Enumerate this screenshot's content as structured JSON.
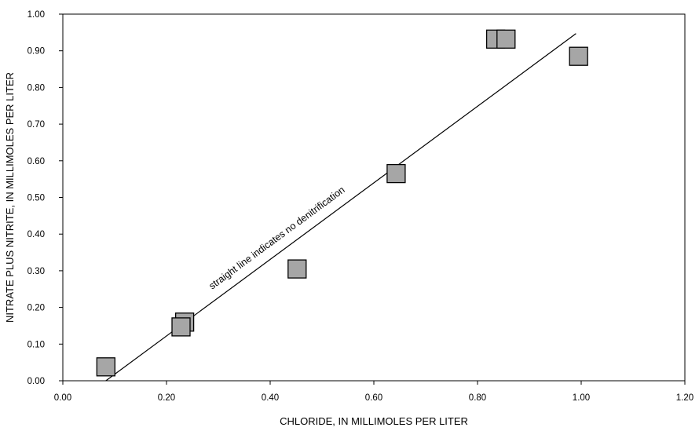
{
  "chart_data": {
    "type": "scatter",
    "xlabel": "CHLORIDE, IN MILLIMOLES PER LITER",
    "ylabel": "NITRATE PLUS NITRITE, IN MILLIMOLES PER LITER",
    "xlim": [
      0,
      1.2
    ],
    "ylim": [
      0,
      1.0
    ],
    "x_ticks": [
      "0.00",
      "0.20",
      "0.40",
      "0.60",
      "0.80",
      "1.00",
      "1.20"
    ],
    "y_ticks": [
      "0.00",
      "0.10",
      "0.20",
      "0.30",
      "0.40",
      "0.50",
      "0.60",
      "0.70",
      "0.80",
      "0.90",
      "1.00"
    ],
    "grid": false,
    "marker": "square",
    "colors": {
      "marker_fill": "#a6a6a6",
      "marker_stroke": "#000000",
      "line": "#000000"
    },
    "points": [
      {
        "x": 0.083,
        "y": 0.038
      },
      {
        "x": 0.235,
        "y": 0.16
      },
      {
        "x": 0.228,
        "y": 0.147
      },
      {
        "x": 0.452,
        "y": 0.305
      },
      {
        "x": 0.643,
        "y": 0.565
      },
      {
        "x": 0.835,
        "y": 0.932
      },
      {
        "x": 0.855,
        "y": 0.932
      },
      {
        "x": 0.995,
        "y": 0.885
      }
    ],
    "reference_line": {
      "x": [
        0.083,
        0.99
      ],
      "y": [
        0.0,
        0.947
      ],
      "label": "straight line indicates no denitrification"
    }
  }
}
